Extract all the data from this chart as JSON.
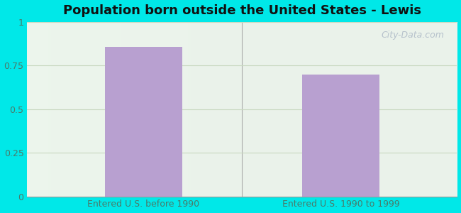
{
  "title": "Population born outside the United States - Lewis",
  "categories": [
    "Entered U.S. before 1990",
    "Entered U.S. 1990 to 1999"
  ],
  "values": [
    0.857,
    0.697
  ],
  "bar_color": "#b8a0d0",
  "bar_width": 0.18,
  "ylim": [
    0,
    1.0
  ],
  "yticks": [
    0,
    0.25,
    0.5,
    0.75,
    1
  ],
  "ytick_labels": [
    "0",
    "0.25",
    "0.5",
    "0.75",
    "1"
  ],
  "background_outer": "#00e8e8",
  "grid_color": "#c8d8c0",
  "title_fontsize": 13,
  "tick_fontsize": 9,
  "tick_color": "#4a7a6a",
  "watermark": "City-Data.com",
  "divider_color": "#aaaaaa",
  "x_positions": [
    0.27,
    0.73
  ]
}
